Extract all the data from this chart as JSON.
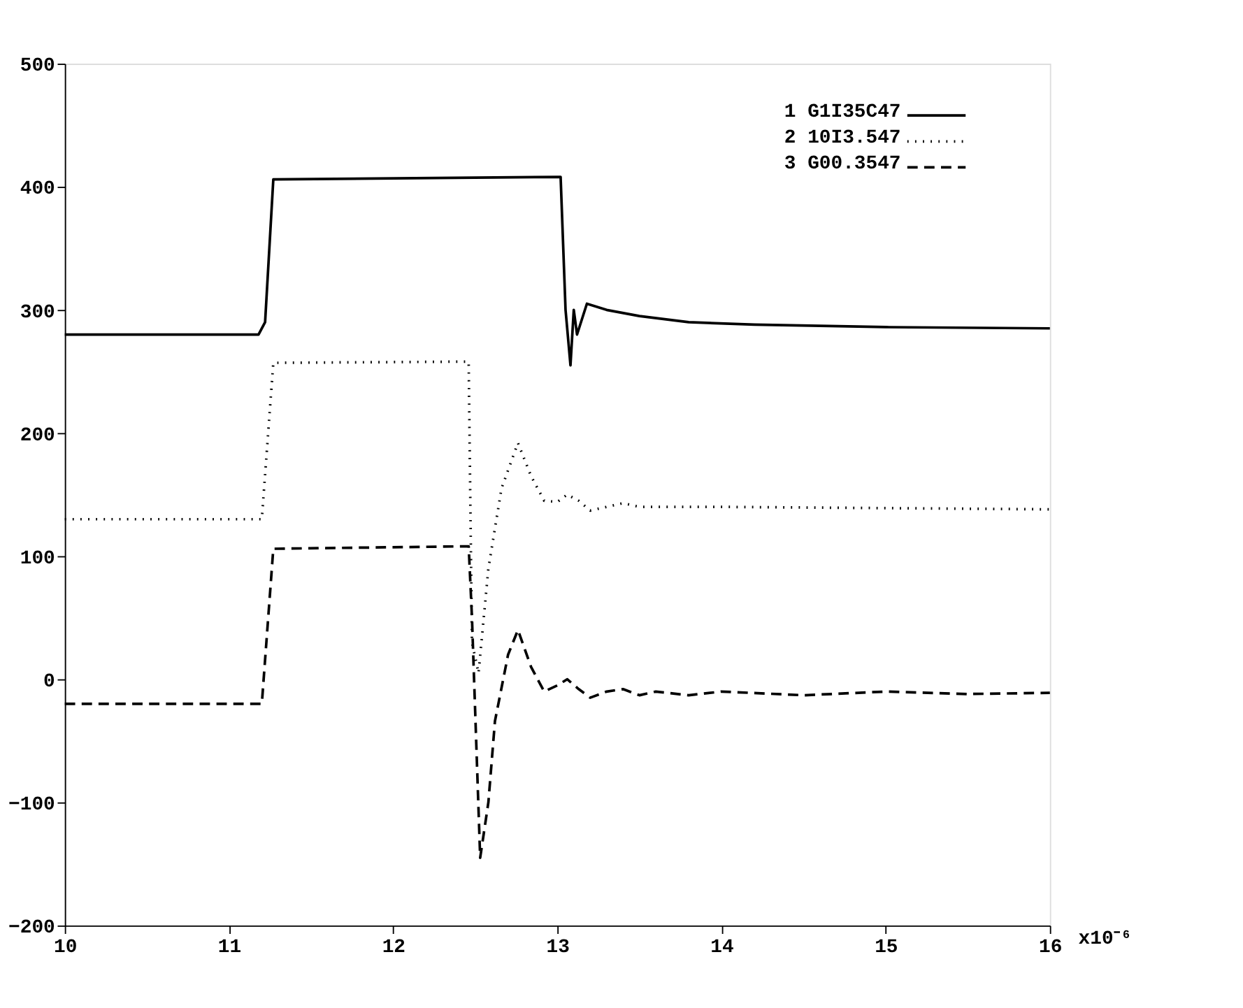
{
  "chart_data": {
    "type": "line",
    "xlim": [
      10,
      16
    ],
    "xticks": [
      10,
      11,
      12,
      13,
      14,
      15,
      16
    ],
    "xlabel": "x10⁻⁶",
    "ylim": [
      -200,
      500
    ],
    "yticks": [
      -200,
      -100,
      0,
      100,
      200,
      300,
      400,
      500
    ],
    "grid": false,
    "legend": "top right",
    "marker": "none",
    "series": [
      {
        "name": "1 G1I35C47",
        "color": "#000000",
        "line_style": "solid",
        "x": [
          10,
          11.18,
          11.22,
          11.27,
          13.02,
          13.05,
          13.08,
          13.1,
          13.12,
          13.18,
          13.3,
          13.5,
          13.8,
          14.2,
          15,
          16
        ],
        "values": [
          280,
          280,
          290,
          406,
          408,
          300,
          255,
          300,
          280,
          305,
          300,
          295,
          290,
          288,
          286,
          285
        ]
      },
      {
        "name": "2 10I3.547",
        "color": "#000000",
        "line_style": "dotted",
        "x": [
          10,
          11.2,
          11.27,
          12.46,
          12.48,
          12.52,
          12.58,
          12.66,
          12.76,
          12.84,
          12.92,
          13.0,
          13.06,
          13.13,
          13.2,
          13.3,
          13.4,
          13.5,
          14,
          15,
          16
        ],
        "values": [
          130,
          130,
          257,
          258,
          30,
          5,
          90,
          155,
          192,
          165,
          145,
          144,
          150,
          145,
          137,
          140,
          143,
          140,
          140,
          139,
          138
        ]
      },
      {
        "name": "3 G00.3547",
        "color": "#000000",
        "line_style": "dashed",
        "x": [
          10,
          11.2,
          11.27,
          12.46,
          12.48,
          12.53,
          12.58,
          12.62,
          12.7,
          12.76,
          12.84,
          12.92,
          13.0,
          13.06,
          13.13,
          13.2,
          13.3,
          13.4,
          13.5,
          13.6,
          13.8,
          14.0,
          14.5,
          15,
          15.5,
          16
        ],
        "values": [
          -20,
          -20,
          106,
          108,
          50,
          -145,
          -100,
          -34,
          20,
          40,
          10,
          -10,
          -5,
          0,
          -8,
          -15,
          -10,
          -8,
          -13,
          -10,
          -13,
          -10,
          -13,
          -10,
          -12,
          -11
        ]
      }
    ]
  }
}
